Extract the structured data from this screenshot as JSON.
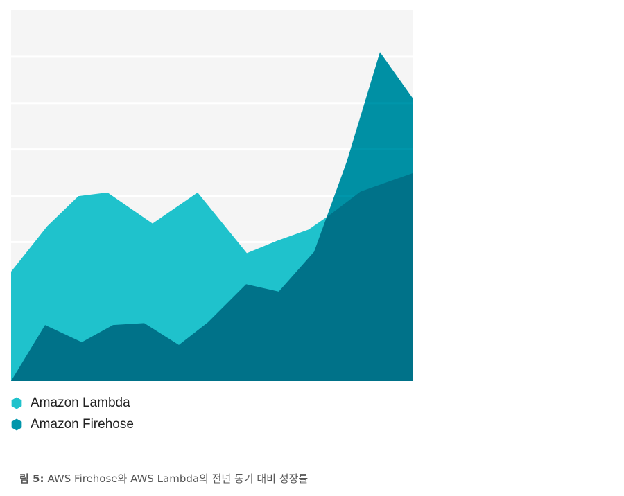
{
  "chart_data": {
    "type": "area",
    "series": [
      {
        "name": "Amazon Lambda",
        "color": "#1fc2cc",
        "x": [
          0,
          5.2,
          9.7,
          13.9,
          20.4,
          26.9,
          34,
          38.4,
          42.9,
          45.9,
          50.4,
          58
        ],
        "values": [
          2.36,
          3.34,
          3.99,
          4.07,
          3.4,
          4.07,
          2.76,
          3.03,
          3.27,
          3.58,
          4.09,
          4.49
        ]
      },
      {
        "name": "Amazon Firehose",
        "color": "#0096ab",
        "x": [
          0,
          4.9,
          10.2,
          14.7,
          19.2,
          24.2,
          28.4,
          33.9,
          38.6,
          43.7,
          48.4,
          53.2,
          58
        ],
        "values": [
          0,
          1.21,
          0.84,
          1.21,
          1.25,
          0.78,
          1.27,
          2.09,
          1.93,
          2.79,
          4.73,
          7.1,
          6.09
        ]
      }
    ],
    "xlim": [
      0,
      58
    ],
    "ylim": [
      0,
      8
    ],
    "yticks": [
      1,
      2,
      3,
      4,
      5,
      6,
      7
    ],
    "grid": true,
    "blend": "multiply",
    "caption_label": "림 5:",
    "caption_text": "AWS Firehose와 AWS Lambda의 전년 동기 대비 성장률"
  }
}
